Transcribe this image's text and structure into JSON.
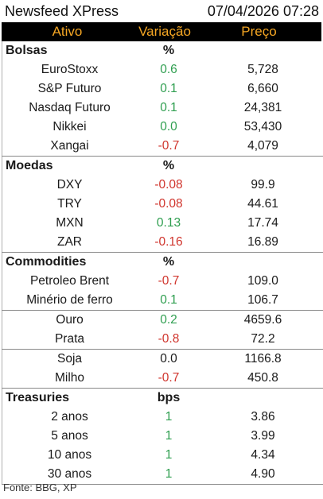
{
  "topbar": {
    "title": "Newsfeed XPress",
    "datetime": "07/04/2026 07:28"
  },
  "header": {
    "col1": "Ativo",
    "col2": "Variação",
    "col3": "Preço"
  },
  "sections": [
    {
      "name": "Bolsas",
      "unit": "%",
      "rows": [
        {
          "asset": "EuroStoxx",
          "change": "0.6",
          "dir": "pos",
          "price": "5,728"
        },
        {
          "asset": "S&P Futuro",
          "change": "0.1",
          "dir": "pos",
          "price": "6,660"
        },
        {
          "asset": "Nasdaq Futuro",
          "change": "0.1",
          "dir": "pos",
          "price": "24,381"
        },
        {
          "asset": "Nikkei",
          "change": "0.0",
          "dir": "pos",
          "price": "53,430"
        },
        {
          "asset": "Xangai",
          "change": "-0.7",
          "dir": "neg",
          "price": "4,079"
        }
      ]
    },
    {
      "name": "Moedas",
      "unit": "%",
      "rows": [
        {
          "asset": "DXY",
          "change": "-0.08",
          "dir": "neg",
          "price": "99.9"
        },
        {
          "asset": "TRY",
          "change": "-0.08",
          "dir": "neg",
          "price": "44.61"
        },
        {
          "asset": "MXN",
          "change": "0.13",
          "dir": "pos",
          "price": "17.74"
        },
        {
          "asset": "ZAR",
          "change": "-0.16",
          "dir": "neg",
          "price": "16.89"
        }
      ]
    },
    {
      "name": "Commodities",
      "unit": "%",
      "rows": [
        {
          "asset": "Petroleo Brent",
          "change": "-0.7",
          "dir": "neg",
          "price": "109.0"
        },
        {
          "asset": "Minério de ferro",
          "change": "0.1",
          "dir": "pos",
          "price": "106.7"
        },
        {
          "asset": "Ouro",
          "change": "0.2",
          "dir": "pos",
          "price": "4659.6",
          "group_start": true
        },
        {
          "asset": "Prata",
          "change": "-0.8",
          "dir": "neg",
          "price": "72.2"
        },
        {
          "asset": "Soja",
          "change": "0.0",
          "dir": "neu",
          "price": "1166.8",
          "group_start": true
        },
        {
          "asset": "Milho",
          "change": "-0.7",
          "dir": "neg",
          "price": "450.8"
        }
      ]
    },
    {
      "name": "Treasuries",
      "unit": "bps",
      "rows": [
        {
          "asset": "2 anos",
          "change": "1",
          "dir": "pos",
          "price": "3.86"
        },
        {
          "asset": "5 anos",
          "change": "1",
          "dir": "pos",
          "price": "3.99"
        },
        {
          "asset": "10 anos",
          "change": "1",
          "dir": "pos",
          "price": "4.34"
        },
        {
          "asset": "30 anos",
          "change": "1",
          "dir": "pos",
          "price": "4.90"
        }
      ]
    }
  ],
  "footer": {
    "source": "Fonte: BBG, XP"
  }
}
